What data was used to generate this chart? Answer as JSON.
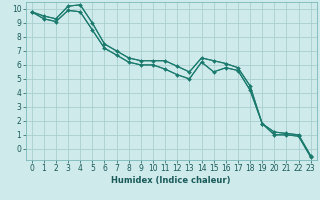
{
  "xlabel": "Humidex (Indice chaleur)",
  "background_color": "#ceeaea",
  "grid_color": "#aacfcf",
  "line_color": "#1a7a6e",
  "xlim": [
    -0.5,
    23.5
  ],
  "ylim": [
    -0.8,
    10.5
  ],
  "xticks": [
    0,
    1,
    2,
    3,
    4,
    5,
    6,
    7,
    8,
    9,
    10,
    11,
    12,
    13,
    14,
    15,
    16,
    17,
    18,
    19,
    20,
    21,
    22,
    23
  ],
  "yticks": [
    0,
    1,
    2,
    3,
    4,
    5,
    6,
    7,
    8,
    9,
    10
  ],
  "ytick_labels": [
    "0",
    "1",
    "2",
    "3",
    "4",
    "5",
    "6",
    "7",
    "8",
    "9",
    "10"
  ],
  "series1": [
    9.8,
    9.5,
    9.3,
    10.2,
    10.3,
    9.0,
    7.5,
    7.0,
    6.5,
    6.3,
    6.3,
    6.3,
    5.9,
    5.5,
    6.5,
    6.3,
    6.1,
    5.8,
    4.5,
    1.8,
    1.2,
    1.1,
    1.0,
    -0.5
  ],
  "series2": [
    9.8,
    9.3,
    9.1,
    9.9,
    9.8,
    8.5,
    7.2,
    6.7,
    6.2,
    6.0,
    6.0,
    5.7,
    5.3,
    5.0,
    6.2,
    5.5,
    5.8,
    5.6,
    4.2,
    1.8,
    1.0,
    1.0,
    0.9,
    -0.6
  ],
  "marker": "D",
  "marker_size": 2.0,
  "linewidth": 0.8,
  "tick_fontsize": 5.5,
  "xlabel_fontsize": 6.0
}
